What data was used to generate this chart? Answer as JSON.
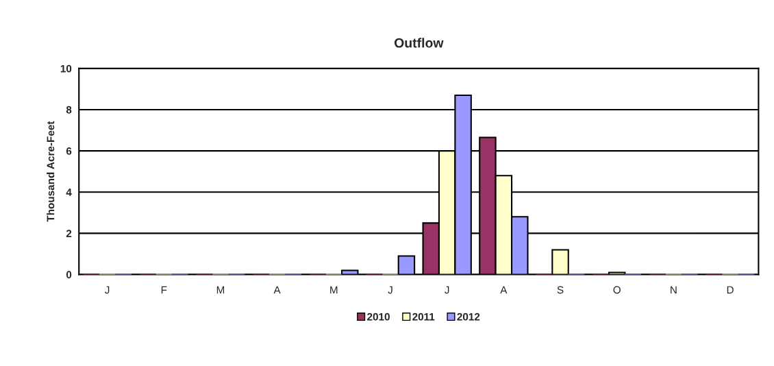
{
  "chart_data": {
    "type": "bar",
    "title": "Outflow",
    "ylabel": "Thousand Acre-Feet",
    "categories": [
      "J",
      "F",
      "M",
      "A",
      "M",
      "J",
      "J",
      "A",
      "S",
      "O",
      "N",
      "D"
    ],
    "series": [
      {
        "name": "2010",
        "color": "#993366",
        "values": [
          0,
          0,
          0,
          0,
          0,
          0,
          2.5,
          6.65,
          0,
          0,
          0,
          0
        ]
      },
      {
        "name": "2011",
        "color": "#ffffcc",
        "values": [
          0,
          0,
          0,
          0,
          0,
          0,
          6.0,
          4.8,
          1.2,
          0.1,
          0,
          0
        ]
      },
      {
        "name": "2012",
        "color": "#9999ff",
        "values": [
          0,
          0,
          0,
          0,
          0.2,
          0.9,
          8.7,
          2.8,
          0,
          0,
          0,
          0
        ]
      }
    ],
    "ylim": [
      0,
      10
    ],
    "yticks": [
      0,
      2,
      4,
      6,
      8,
      10
    ],
    "grid": "y",
    "legend": "bottom"
  }
}
